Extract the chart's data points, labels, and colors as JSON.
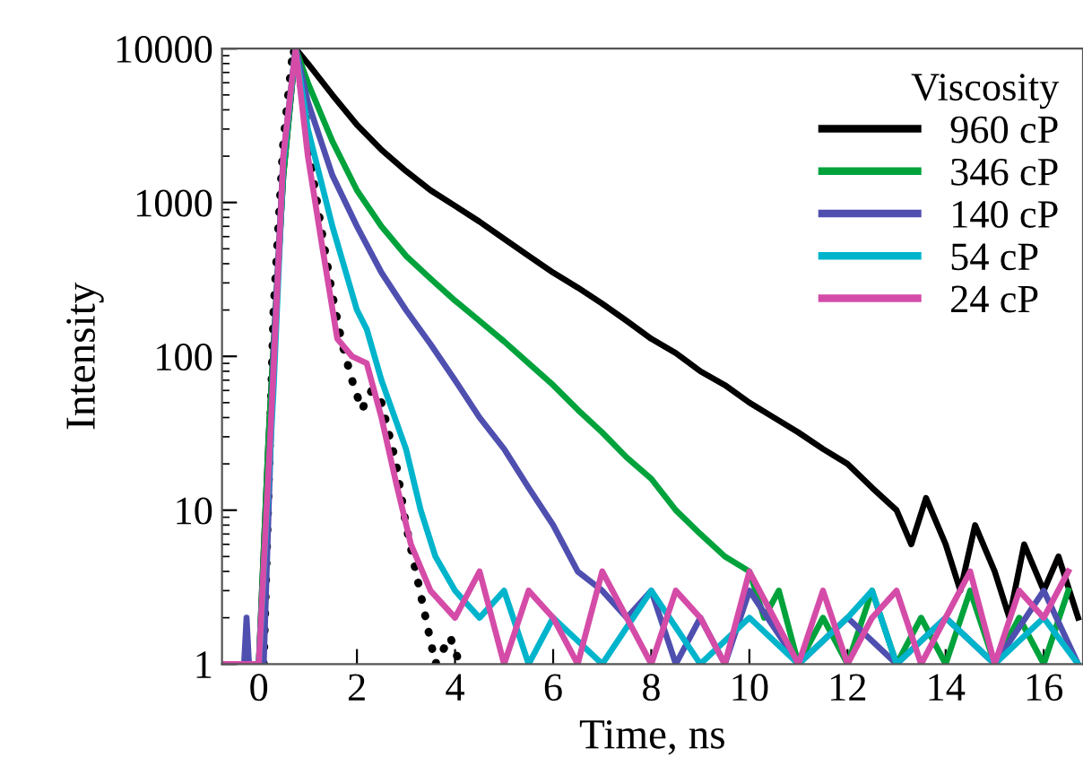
{
  "chart_data": {
    "type": "line",
    "xlabel": "Time, ns",
    "ylabel": "Intensity",
    "legend_title": "Viscosity",
    "legend": "top right",
    "log": "y",
    "grid": false,
    "marker": "none",
    "xlim": [
      -0.75,
      16.8
    ],
    "xticks": [
      0,
      2,
      4,
      6,
      8,
      10,
      12,
      14,
      16
    ],
    "ylim": [
      1,
      10000
    ],
    "yticks": [
      1,
      10,
      100,
      1000,
      10000
    ],
    "series": [
      {
        "name": null,
        "color": "#000000",
        "line_style": "dotted",
        "x": [
          0.1,
          0.3,
          0.5,
          0.7,
          0.9,
          1.1,
          1.3,
          1.5,
          1.7,
          1.9,
          2.1,
          2.3,
          2.5,
          2.8,
          3.0,
          3.2,
          3.4,
          3.6,
          3.9,
          4.1
        ],
        "values": [
          1,
          200,
          2500,
          10000,
          5000,
          1500,
          600,
          250,
          120,
          70,
          45,
          60,
          50,
          20,
          8,
          4,
          2,
          1,
          1.5,
          1
        ]
      },
      {
        "name": "960 cP",
        "color": "#000000",
        "line_style": "solid",
        "x": [
          -0.7,
          0,
          0.2,
          0.5,
          0.75,
          1,
          1.5,
          2,
          2.5,
          3,
          3.5,
          4,
          4.5,
          5,
          5.5,
          6,
          6.5,
          7,
          7.5,
          8,
          8.5,
          9,
          9.5,
          10,
          10.5,
          11,
          11.5,
          12,
          12.5,
          13,
          13.3,
          13.6,
          14,
          14.3,
          14.6,
          15,
          15.3,
          15.6,
          16,
          16.3,
          16.7
        ],
        "values": [
          1,
          1,
          30,
          1500,
          10000,
          8000,
          5000,
          3200,
          2200,
          1600,
          1200,
          950,
          750,
          580,
          450,
          350,
          280,
          220,
          170,
          130,
          105,
          80,
          65,
          50,
          40,
          32,
          25,
          20,
          14,
          10,
          6,
          12,
          6,
          3,
          8,
          4,
          2,
          6,
          3,
          5,
          2
        ]
      },
      {
        "name": "346 cP",
        "color": "#00a23c",
        "line_style": "solid",
        "x": [
          -0.7,
          0,
          0.2,
          0.5,
          0.75,
          1,
          1.5,
          2,
          2.5,
          3,
          3.5,
          4,
          4.5,
          5,
          5.5,
          6,
          6.5,
          7,
          7.5,
          8,
          8.5,
          9,
          9.5,
          10,
          10.3,
          10.6,
          11,
          11.5,
          12,
          12.5,
          13,
          13.5,
          14,
          14.5,
          15,
          15.5,
          16,
          16.5
        ],
        "values": [
          1,
          1,
          30,
          1500,
          10000,
          6000,
          2500,
          1200,
          700,
          450,
          320,
          230,
          170,
          125,
          90,
          65,
          45,
          32,
          22,
          16,
          10,
          7,
          5,
          4,
          2,
          3,
          1,
          2,
          1,
          3,
          1,
          2,
          1,
          3,
          1,
          2,
          1,
          3
        ]
      },
      {
        "name": "140 cP",
        "color": "#4f4fb0",
        "line_style": "solid",
        "x": [
          -0.7,
          -0.3,
          -0.25,
          -0.2,
          0.1,
          0.3,
          0.5,
          0.75,
          1,
          1.5,
          2,
          2.5,
          3,
          3.5,
          4,
          4.5,
          5,
          5.5,
          6,
          6.5,
          7,
          7.5,
          8,
          8.5,
          9,
          9.5,
          10,
          11,
          12,
          13,
          14,
          15,
          16,
          16.7
        ],
        "values": [
          1,
          1,
          2,
          1,
          1,
          100,
          2000,
          10000,
          4500,
          1500,
          700,
          350,
          200,
          120,
          70,
          40,
          25,
          14,
          8,
          4,
          3,
          2,
          3,
          1,
          2,
          1,
          3,
          1,
          2,
          1,
          2,
          1,
          3,
          1
        ]
      },
      {
        "name": "54 cP",
        "color": "#00b4cc",
        "line_style": "solid",
        "x": [
          -0.7,
          0,
          0.3,
          0.5,
          0.75,
          1,
          1.5,
          2,
          2.2,
          2.5,
          3,
          3.3,
          3.6,
          4,
          4.5,
          5,
          5.5,
          6,
          7,
          8,
          9,
          10,
          11,
          12,
          12.5,
          13,
          14,
          15,
          16,
          16.7
        ],
        "values": [
          1,
          1,
          60,
          1800,
          10000,
          3000,
          700,
          200,
          150,
          70,
          25,
          10,
          5,
          3,
          2,
          3,
          1,
          2,
          1,
          3,
          1,
          2,
          1,
          2,
          3,
          1,
          2,
          1,
          2,
          1
        ]
      },
      {
        "name": "24 cP",
        "color": "#d44ca8",
        "line_style": "solid",
        "x": [
          -0.7,
          0,
          0.3,
          0.5,
          0.75,
          1,
          1.3,
          1.6,
          1.9,
          2.2,
          2.5,
          2.8,
          3.1,
          3.5,
          4,
          4.5,
          5,
          5.5,
          6,
          6.5,
          7,
          7.5,
          8,
          8.5,
          9,
          9.5,
          10,
          10.5,
          11,
          11.5,
          12,
          12.5,
          13,
          13.5,
          14,
          14.5,
          15,
          15.5,
          16,
          16.5
        ],
        "values": [
          1,
          1,
          80,
          2000,
          10000,
          2000,
          500,
          130,
          100,
          90,
          40,
          15,
          6,
          3,
          2,
          4,
          1,
          3,
          2,
          1,
          4,
          2,
          1,
          3,
          2,
          1,
          4,
          2,
          1,
          3,
          1,
          2,
          3,
          1,
          2,
          4,
          1,
          3,
          2,
          4
        ]
      }
    ]
  }
}
